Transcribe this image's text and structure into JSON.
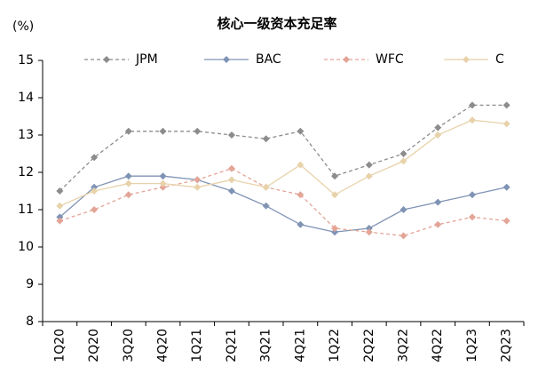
{
  "chart_data": {
    "type": "line",
    "title": "核心一级资本充足率",
    "y_label": "(%)",
    "categories": [
      "1Q20",
      "2Q20",
      "3Q20",
      "4Q20",
      "1Q21",
      "2Q21",
      "3Q21",
      "4Q21",
      "1Q22",
      "2Q22",
      "3Q22",
      "4Q22",
      "1Q23",
      "2Q23"
    ],
    "series": [
      {
        "name": "JPM",
        "color": "#8c8c8c",
        "dashed": true,
        "values": [
          11.5,
          12.4,
          13.1,
          13.1,
          13.1,
          13.0,
          12.9,
          13.1,
          11.9,
          12.2,
          12.5,
          13.2,
          13.8,
          13.8
        ]
      },
      {
        "name": "BAC",
        "color": "#7f93b5",
        "dashed": false,
        "values": [
          10.8,
          11.6,
          11.9,
          11.9,
          11.8,
          11.5,
          11.1,
          10.6,
          10.4,
          10.5,
          11.0,
          11.2,
          11.4,
          11.6
        ]
      },
      {
        "name": "WFC",
        "color": "#e3a597",
        "dashed": true,
        "values": [
          10.7,
          11.0,
          11.4,
          11.6,
          11.8,
          12.1,
          11.6,
          11.4,
          10.5,
          10.4,
          10.3,
          10.6,
          10.8,
          10.7
        ]
      },
      {
        "name": "C",
        "color": "#e8d2aa",
        "dashed": false,
        "values": [
          11.1,
          11.5,
          11.7,
          11.7,
          11.6,
          11.8,
          11.6,
          12.2,
          11.4,
          11.9,
          12.3,
          13.0,
          13.4,
          13.3
        ]
      }
    ],
    "ylim": [
      8,
      15
    ],
    "yticks": [
      8,
      9,
      10,
      11,
      12,
      13,
      14,
      15
    ],
    "grid": false,
    "legend": "top"
  }
}
